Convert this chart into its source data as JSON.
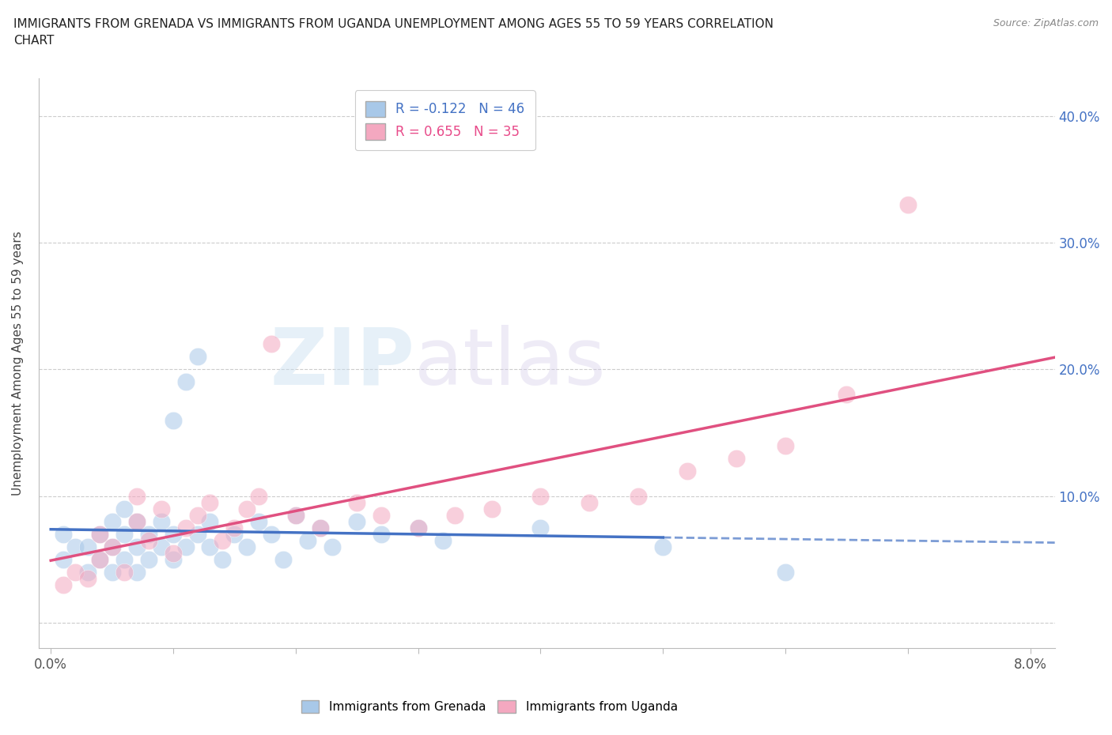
{
  "title": "IMMIGRANTS FROM GRENADA VS IMMIGRANTS FROM UGANDA UNEMPLOYMENT AMONG AGES 55 TO 59 YEARS CORRELATION\nCHART",
  "source": "Source: ZipAtlas.com",
  "ylabel": "Unemployment Among Ages 55 to 59 years",
  "xlim": [
    -0.001,
    0.082
  ],
  "ylim": [
    -0.02,
    0.43
  ],
  "xtick_positions": [
    0.0,
    0.01,
    0.02,
    0.03,
    0.04,
    0.05,
    0.06,
    0.07,
    0.08
  ],
  "xtick_labels": [
    "0.0%",
    "",
    "",
    "",
    "",
    "",
    "",
    "",
    "8.0%"
  ],
  "ytick_positions": [
    0.0,
    0.1,
    0.2,
    0.3,
    0.4
  ],
  "ytick_labels": [
    "",
    "10.0%",
    "20.0%",
    "30.0%",
    "40.0%"
  ],
  "grenada_color": "#A8C8E8",
  "uganda_color": "#F4A8C0",
  "grenada_R": -0.122,
  "grenada_N": 46,
  "uganda_R": 0.655,
  "uganda_N": 35,
  "grenada_line_color": "#4472C4",
  "uganda_line_color": "#E05080",
  "watermark_zip": "ZIP",
  "watermark_atlas": "atlas",
  "grenada_x": [
    0.001,
    0.001,
    0.002,
    0.003,
    0.003,
    0.004,
    0.004,
    0.005,
    0.005,
    0.005,
    0.006,
    0.006,
    0.006,
    0.007,
    0.007,
    0.007,
    0.008,
    0.008,
    0.009,
    0.009,
    0.01,
    0.01,
    0.01,
    0.011,
    0.011,
    0.012,
    0.012,
    0.013,
    0.013,
    0.014,
    0.015,
    0.016,
    0.017,
    0.018,
    0.019,
    0.02,
    0.021,
    0.022,
    0.023,
    0.025,
    0.027,
    0.03,
    0.032,
    0.04,
    0.05,
    0.06
  ],
  "grenada_y": [
    0.07,
    0.05,
    0.06,
    0.04,
    0.06,
    0.05,
    0.07,
    0.04,
    0.06,
    0.08,
    0.05,
    0.07,
    0.09,
    0.04,
    0.06,
    0.08,
    0.05,
    0.07,
    0.06,
    0.08,
    0.05,
    0.07,
    0.16,
    0.06,
    0.19,
    0.07,
    0.21,
    0.06,
    0.08,
    0.05,
    0.07,
    0.06,
    0.08,
    0.07,
    0.05,
    0.085,
    0.065,
    0.075,
    0.06,
    0.08,
    0.07,
    0.075,
    0.065,
    0.075,
    0.06,
    0.04
  ],
  "uganda_x": [
    0.001,
    0.002,
    0.003,
    0.004,
    0.004,
    0.005,
    0.006,
    0.007,
    0.007,
    0.008,
    0.009,
    0.01,
    0.011,
    0.012,
    0.013,
    0.014,
    0.015,
    0.016,
    0.017,
    0.018,
    0.02,
    0.022,
    0.025,
    0.027,
    0.03,
    0.033,
    0.036,
    0.04,
    0.044,
    0.048,
    0.052,
    0.056,
    0.06,
    0.065,
    0.07
  ],
  "uganda_y": [
    0.03,
    0.04,
    0.035,
    0.05,
    0.07,
    0.06,
    0.04,
    0.08,
    0.1,
    0.065,
    0.09,
    0.055,
    0.075,
    0.085,
    0.095,
    0.065,
    0.075,
    0.09,
    0.1,
    0.22,
    0.085,
    0.075,
    0.095,
    0.085,
    0.075,
    0.085,
    0.09,
    0.1,
    0.095,
    0.1,
    0.12,
    0.13,
    0.14,
    0.18,
    0.33
  ]
}
